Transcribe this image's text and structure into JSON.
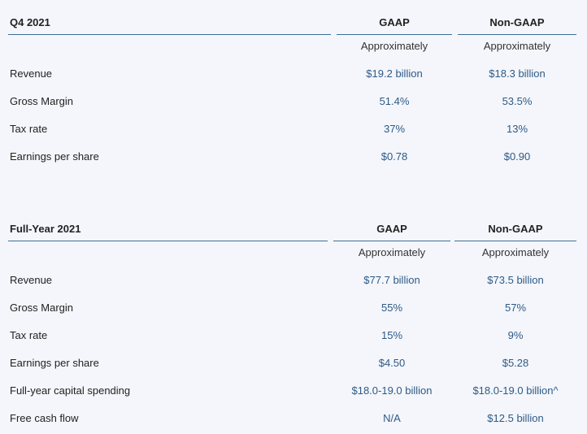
{
  "q4": {
    "title": "Q4 2021",
    "col_gaap": "GAAP",
    "col_nongaap": "Non-GAAP",
    "approx_gaap": "Approximately",
    "approx_nongaap": "Approximately",
    "rows": [
      {
        "label": "Revenue",
        "gaap": "$19.2 billion",
        "nongaap": "$18.3 billion"
      },
      {
        "label": "Gross Margin",
        "gaap": "51.4%",
        "nongaap": "53.5%"
      },
      {
        "label": "Tax rate",
        "gaap": "37%",
        "nongaap": "13%"
      },
      {
        "label": "Earnings per share",
        "gaap": "$0.78",
        "nongaap": "$0.90"
      }
    ]
  },
  "fy": {
    "title": "Full-Year 2021",
    "col_gaap": "GAAP",
    "col_nongaap": "Non-GAAP",
    "approx_gaap": "Approximately",
    "approx_nongaap": "Approximately",
    "rows": [
      {
        "label": "Revenue",
        "gaap": "$77.7 billion",
        "nongaap": "$73.5 billion"
      },
      {
        "label": "Gross Margin",
        "gaap": "55%",
        "nongaap": "57%"
      },
      {
        "label": "Tax rate",
        "gaap": "15%",
        "nongaap": "9%"
      },
      {
        "label": "Earnings per share",
        "gaap": "$4.50",
        "nongaap": "$5.28"
      },
      {
        "label": "Full-year capital spending",
        "gaap": "$18.0-19.0 billion",
        "nongaap": "$18.0-19.0 billion^"
      },
      {
        "label": "Free cash flow",
        "gaap": "N/A",
        "nongaap": "$12.5 billion"
      }
    ]
  },
  "colors": {
    "rule": "#3d6f95",
    "value": "#2e5a86"
  }
}
